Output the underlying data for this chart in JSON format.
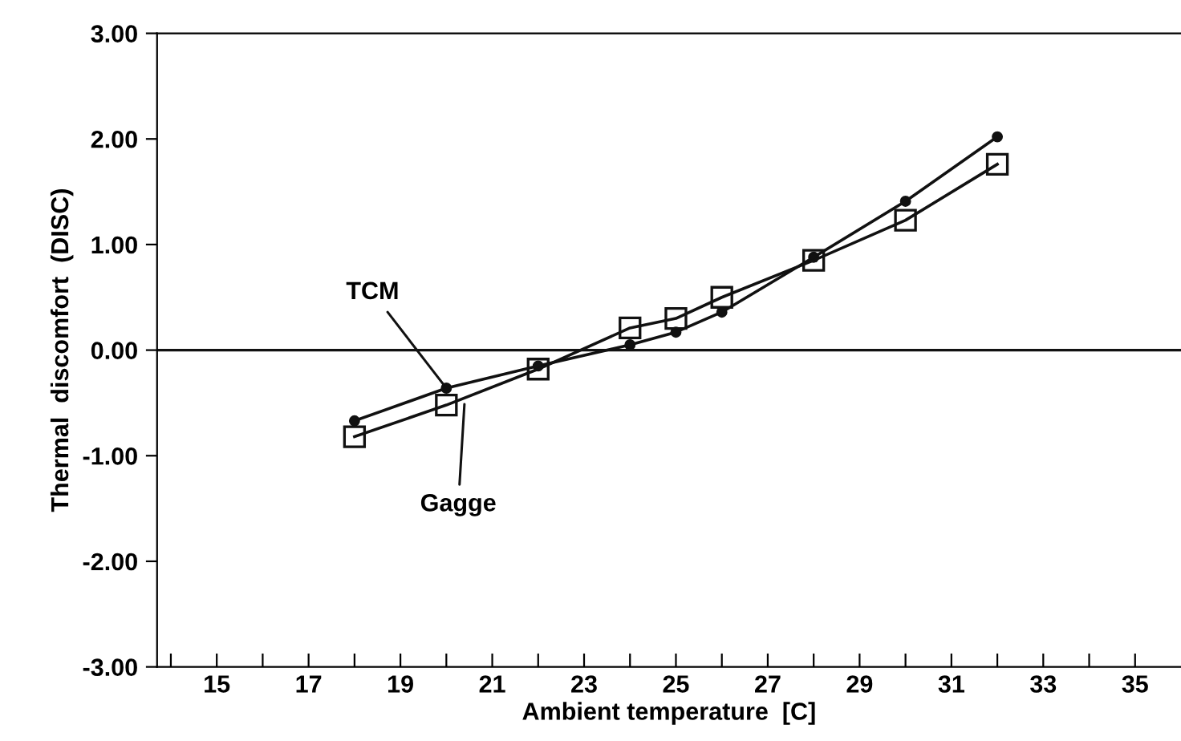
{
  "chart_data": {
    "type": "line",
    "xlabel": "Ambient temperature  [C]",
    "ylabel": "Thermal  discomfort  (DISC)",
    "x": [
      18,
      20,
      22,
      24,
      25,
      26,
      28,
      30,
      32
    ],
    "series": [
      {
        "color": "#111111",
        "marker": "circle",
        "values": [
          -0.67,
          -0.36,
          -0.15,
          0.05,
          0.17,
          0.36,
          0.88,
          1.41,
          2.02
        ]
      },
      {
        "color": "#111111",
        "marker": "square",
        "values": [
          -0.82,
          -0.52,
          -0.18,
          0.21,
          0.3,
          0.5,
          0.85,
          1.23,
          1.76
        ]
      }
    ],
    "xlim": [
      13.7,
      36
    ],
    "xticks": [
      {
        "value": 14,
        "label": null
      },
      15,
      {
        "value": 16,
        "label": null
      },
      17,
      {
        "value": 18,
        "label": null
      },
      19,
      {
        "value": 20,
        "label": null
      },
      21,
      {
        "value": 22,
        "label": null
      },
      23,
      {
        "value": 24,
        "label": null
      },
      25,
      {
        "value": 26,
        "label": null
      },
      27,
      {
        "value": 28,
        "label": null
      },
      29,
      {
        "value": 30,
        "label": null
      },
      31,
      {
        "value": 32,
        "label": null
      },
      33,
      {
        "value": 34,
        "label": null
      },
      35
    ],
    "ylim": [
      -3,
      3
    ],
    "yticks": [
      {
        "value": -3,
        "label": "-3.00"
      },
      {
        "value": -2,
        "label": "-2.00"
      },
      {
        "value": -1,
        "label": "-1.00"
      },
      {
        "value": 0,
        "label": "0.00"
      },
      {
        "value": 1,
        "label": "1.00"
      },
      {
        "value": 2,
        "label": "2.00"
      },
      {
        "value": 3,
        "label": "3.00"
      }
    ],
    "ref_lines": [
      {
        "axis": "y",
        "value": 0,
        "color": "#111111"
      }
    ],
    "annotations": [
      {
        "text": "TCM",
        "x": 20,
        "y": -0.36
      },
      {
        "text": "Gagge",
        "x": 20.4,
        "y": -0.47
      }
    ],
    "grid": false,
    "legend": false
  }
}
